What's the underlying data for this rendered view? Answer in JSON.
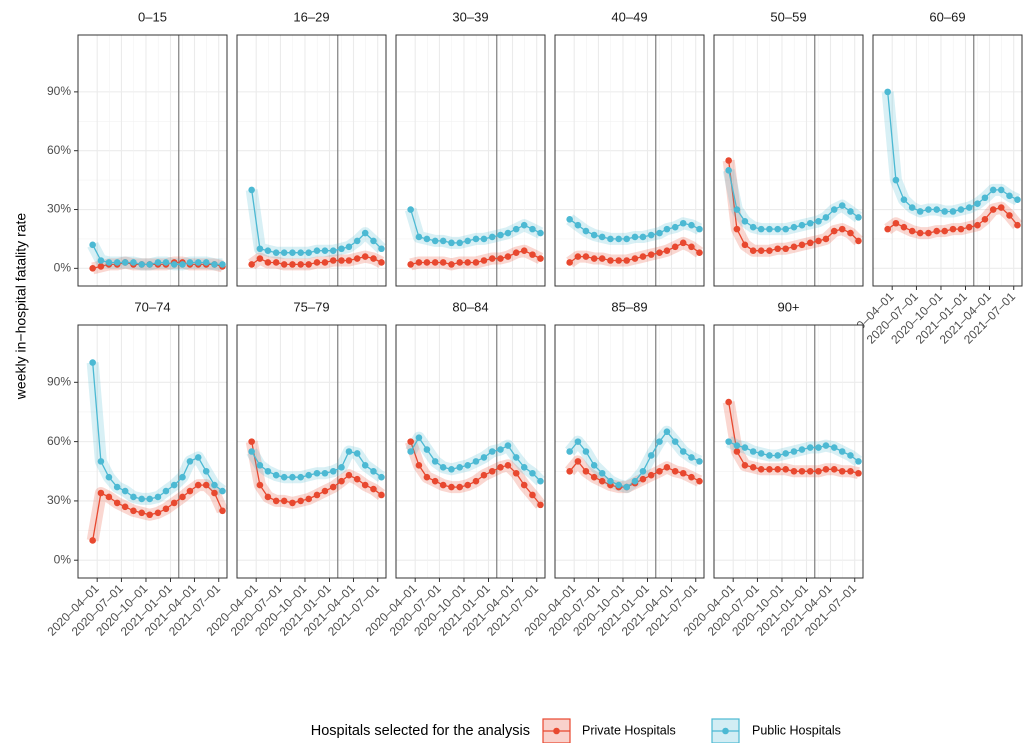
{
  "chart_data": {
    "type": "line",
    "y_label": "weekly in−hospital fatality rate",
    "legend_title": "Hospitals selected for the analysis",
    "series": [
      {
        "name": "Private Hospitals",
        "color": "#e8482f"
      },
      {
        "name": "Public Hospitals",
        "color": "#4cb9d3"
      }
    ],
    "x": [
      "2020-03-15",
      "2020-04-15",
      "2020-05-15",
      "2020-06-15",
      "2020-07-15",
      "2020-08-15",
      "2020-09-15",
      "2020-10-15",
      "2020-11-15",
      "2020-12-15",
      "2021-01-15",
      "2021-02-15",
      "2021-03-15",
      "2021-04-15",
      "2021-05-15",
      "2021-06-15",
      "2021-07-15"
    ],
    "xlim": [
      "2020-01-20",
      "2021-08-01"
    ],
    "xticks": [
      {
        "value": "2020-04-01",
        "label": "2020–04–01"
      },
      {
        "value": "2020-07-01",
        "label": "2020–07–01"
      },
      {
        "value": "2020-10-01",
        "label": "2020–10–01"
      },
      {
        "value": "2021-01-01",
        "label": "2021–01–01"
      },
      {
        "value": "2021-04-01",
        "label": "2021–04–01"
      },
      {
        "value": "2021-07-01",
        "label": "2021–07–01"
      }
    ],
    "ylim": [
      -9,
      119
    ],
    "yticks": [
      {
        "value": 0,
        "label": "0%"
      },
      {
        "value": 30,
        "label": "30%"
      },
      {
        "value": 60,
        "label": "60%"
      },
      {
        "value": 90,
        "label": "90%"
      }
    ],
    "vline": "2021-02-01",
    "grid": true,
    "facets": [
      {
        "title": "0–15",
        "series": [
          {
            "values": [
              0,
              1,
              2,
              2,
              3,
              2,
              2,
              2,
              2,
              2,
              3,
              3,
              2,
              2,
              2,
              2,
              1
            ]
          },
          {
            "values": [
              12,
              4,
              3,
              3,
              3,
              3,
              2,
              2,
              3,
              3,
              2,
              2,
              3,
              3,
              3,
              2,
              2
            ]
          }
        ]
      },
      {
        "title": "16–29",
        "series": [
          {
            "values": [
              2,
              5,
              3,
              3,
              2,
              2,
              2,
              2,
              3,
              3,
              4,
              4,
              4,
              5,
              6,
              5,
              3
            ]
          },
          {
            "values": [
              40,
              10,
              9,
              8,
              8,
              8,
              8,
              8,
              9,
              9,
              9,
              10,
              11,
              14,
              18,
              14,
              10
            ]
          }
        ]
      },
      {
        "title": "30–39",
        "series": [
          {
            "values": [
              2,
              3,
              3,
              3,
              3,
              2,
              3,
              3,
              3,
              4,
              5,
              5,
              6,
              8,
              9,
              7,
              5
            ]
          },
          {
            "values": [
              30,
              16,
              15,
              14,
              14,
              13,
              13,
              14,
              15,
              15,
              16,
              17,
              18,
              20,
              22,
              20,
              18
            ]
          }
        ]
      },
      {
        "title": "40–49",
        "series": [
          {
            "values": [
              3,
              6,
              6,
              5,
              5,
              4,
              4,
              4,
              5,
              6,
              7,
              8,
              9,
              11,
              13,
              11,
              8
            ]
          },
          {
            "values": [
              25,
              22,
              19,
              17,
              16,
              15,
              15,
              15,
              16,
              16,
              17,
              18,
              20,
              21,
              23,
              22,
              20
            ]
          }
        ]
      },
      {
        "title": "50–59",
        "series": [
          {
            "values": [
              55,
              20,
              12,
              9,
              9,
              9,
              10,
              10,
              11,
              12,
              13,
              14,
              15,
              19,
              20,
              18,
              14
            ]
          },
          {
            "values": [
              50,
              30,
              24,
              21,
              20,
              20,
              20,
              20,
              21,
              22,
              23,
              24,
              26,
              30,
              32,
              29,
              26
            ]
          }
        ]
      },
      {
        "title": "60–69",
        "series": [
          {
            "values": [
              20,
              23,
              21,
              19,
              18,
              18,
              19,
              19,
              20,
              20,
              21,
              22,
              25,
              30,
              31,
              27,
              22
            ]
          },
          {
            "values": [
              90,
              45,
              35,
              31,
              29,
              30,
              30,
              29,
              29,
              30,
              31,
              33,
              36,
              40,
              40,
              37,
              35
            ]
          }
        ]
      },
      {
        "title": "70–74",
        "series": [
          {
            "values": [
              10,
              34,
              32,
              29,
              27,
              25,
              24,
              23,
              24,
              26,
              29,
              32,
              35,
              38,
              38,
              34,
              25
            ]
          },
          {
            "values": [
              100,
              50,
              42,
              37,
              35,
              32,
              31,
              31,
              32,
              35,
              38,
              42,
              50,
              52,
              45,
              38,
              35
            ]
          }
        ]
      },
      {
        "title": "75–79",
        "series": [
          {
            "values": [
              60,
              38,
              32,
              30,
              30,
              29,
              30,
              31,
              33,
              35,
              37,
              40,
              43,
              41,
              38,
              36,
              33
            ]
          },
          {
            "values": [
              55,
              48,
              45,
              43,
              42,
              42,
              42,
              43,
              44,
              44,
              45,
              47,
              55,
              54,
              48,
              45,
              42
            ]
          }
        ]
      },
      {
        "title": "80–84",
        "series": [
          {
            "values": [
              60,
              48,
              42,
              40,
              38,
              37,
              37,
              38,
              40,
              43,
              45,
              47,
              48,
              44,
              38,
              33,
              28
            ]
          },
          {
            "values": [
              55,
              62,
              56,
              50,
              47,
              46,
              47,
              48,
              50,
              52,
              55,
              56,
              58,
              52,
              47,
              44,
              40
            ]
          }
        ]
      },
      {
        "title": "85–89",
        "series": [
          {
            "values": [
              45,
              50,
              45,
              42,
              40,
              38,
              37,
              37,
              39,
              41,
              43,
              45,
              47,
              45,
              44,
              42,
              40
            ]
          },
          {
            "values": [
              55,
              60,
              55,
              48,
              44,
              40,
              38,
              37,
              40,
              45,
              53,
              60,
              65,
              60,
              55,
              52,
              50
            ]
          }
        ]
      },
      {
        "title": "90+",
        "series": [
          {
            "values": [
              80,
              55,
              48,
              47,
              46,
              46,
              46,
              46,
              45,
              45,
              45,
              45,
              46,
              46,
              45,
              45,
              44
            ]
          },
          {
            "values": [
              60,
              58,
              57,
              55,
              54,
              53,
              53,
              54,
              55,
              56,
              57,
              57,
              58,
              57,
              55,
              53,
              50
            ]
          }
        ]
      }
    ]
  }
}
